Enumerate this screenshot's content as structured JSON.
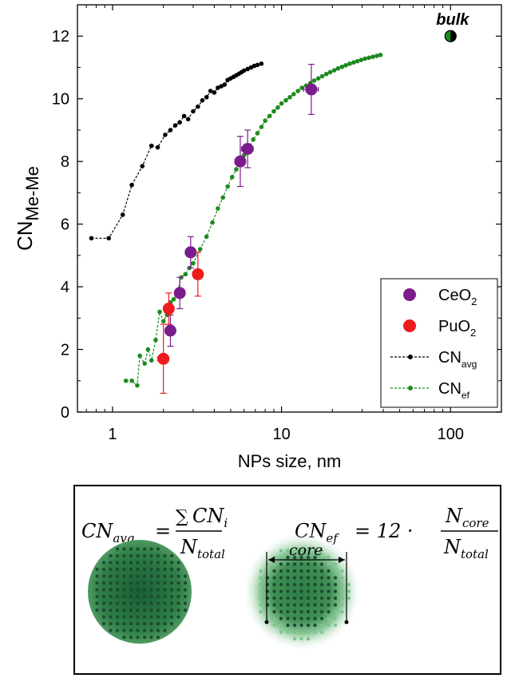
{
  "chart_data": {
    "type": "scatter",
    "xlabel": "NPs size, nm",
    "ylabel_main": "CN",
    "ylabel_sub": "Me-Me",
    "xscale": "log",
    "xlim": [
      0.62,
      200
    ],
    "ylim": [
      0,
      13
    ],
    "xticks": [
      {
        "v": 1,
        "label": "1"
      },
      {
        "v": 10,
        "label": "10"
      },
      {
        "v": 100,
        "label": "100"
      }
    ],
    "yticks": [
      0,
      2,
      4,
      6,
      8,
      10,
      12
    ],
    "bulk": {
      "label": "bulk",
      "x": 100,
      "y": 12
    },
    "series": [
      {
        "name": "CeO",
        "sub": "2",
        "type": "scatter-errorbar",
        "color": "#7b1c8c",
        "points": [
          {
            "x": 2.2,
            "y": 2.6,
            "yerr": 0.5,
            "xerr": 0.15
          },
          {
            "x": 2.5,
            "y": 3.8,
            "yerr": 0.5,
            "xerr": 0.15
          },
          {
            "x": 2.9,
            "y": 5.1,
            "yerr": 0.5,
            "xerr": 0.2
          },
          {
            "x": 5.7,
            "y": 8.0,
            "yerr": 0.8,
            "xerr": 0.4
          },
          {
            "x": 6.3,
            "y": 8.4,
            "yerr": 0.6,
            "xerr": 0.5
          },
          {
            "x": 15.0,
            "y": 10.3,
            "yerr": 0.8,
            "xerr": 1.5
          }
        ]
      },
      {
        "name": "PuO",
        "sub": "2",
        "type": "scatter-errorbar",
        "color": "#ee1c1c",
        "points": [
          {
            "x": 2.0,
            "y": 1.7,
            "yerr": 1.1,
            "xerr": 0.15
          },
          {
            "x": 2.15,
            "y": 3.3,
            "yerr": 0.5,
            "xerr": 0.12
          },
          {
            "x": 3.2,
            "y": 4.4,
            "yerr": 0.7,
            "xerr": 0.2
          }
        ]
      },
      {
        "name": "CN",
        "sub": "avg",
        "type": "line-dotted",
        "color": "#000000",
        "points": [
          {
            "x": 0.75,
            "y": 5.55
          },
          {
            "x": 0.95,
            "y": 5.55
          },
          {
            "x": 1.15,
            "y": 6.3
          },
          {
            "x": 1.3,
            "y": 7.25
          },
          {
            "x": 1.5,
            "y": 7.85
          },
          {
            "x": 1.7,
            "y": 8.5
          },
          {
            "x": 1.85,
            "y": 8.45
          },
          {
            "x": 2.05,
            "y": 8.85
          },
          {
            "x": 2.2,
            "y": 9.0
          },
          {
            "x": 2.35,
            "y": 9.15
          },
          {
            "x": 2.5,
            "y": 9.25
          },
          {
            "x": 2.65,
            "y": 9.45
          },
          {
            "x": 2.8,
            "y": 9.35
          },
          {
            "x": 3.0,
            "y": 9.6
          },
          {
            "x": 3.2,
            "y": 9.75
          },
          {
            "x": 3.4,
            "y": 9.95
          },
          {
            "x": 3.6,
            "y": 10.05
          },
          {
            "x": 3.8,
            "y": 10.25
          },
          {
            "x": 4.0,
            "y": 10.2
          },
          {
            "x": 4.2,
            "y": 10.35
          },
          {
            "x": 4.4,
            "y": 10.4
          },
          {
            "x": 4.6,
            "y": 10.45
          },
          {
            "x": 4.8,
            "y": 10.6
          },
          {
            "x": 5.0,
            "y": 10.65
          },
          {
            "x": 5.2,
            "y": 10.7
          },
          {
            "x": 5.4,
            "y": 10.75
          },
          {
            "x": 5.6,
            "y": 10.8
          },
          {
            "x": 5.8,
            "y": 10.85
          },
          {
            "x": 6.0,
            "y": 10.9
          },
          {
            "x": 6.3,
            "y": 10.95
          },
          {
            "x": 6.6,
            "y": 11.0
          },
          {
            "x": 6.9,
            "y": 11.05
          },
          {
            "x": 7.2,
            "y": 11.08
          },
          {
            "x": 7.6,
            "y": 11.12
          }
        ]
      },
      {
        "name": "CN",
        "sub": "ef",
        "type": "line-dotted",
        "color": "#1e8a1e",
        "points": [
          {
            "x": 1.2,
            "y": 1.0
          },
          {
            "x": 1.3,
            "y": 1.0
          },
          {
            "x": 1.4,
            "y": 0.85
          },
          {
            "x": 1.45,
            "y": 1.8
          },
          {
            "x": 1.55,
            "y": 1.55
          },
          {
            "x": 1.62,
            "y": 2.0
          },
          {
            "x": 1.7,
            "y": 1.65
          },
          {
            "x": 1.8,
            "y": 2.3
          },
          {
            "x": 1.9,
            "y": 3.2
          },
          {
            "x": 2.0,
            "y": 2.9
          },
          {
            "x": 2.1,
            "y": 3.1
          },
          {
            "x": 2.2,
            "y": 3.5
          },
          {
            "x": 2.3,
            "y": 3.6
          },
          {
            "x": 2.4,
            "y": 3.75
          },
          {
            "x": 2.55,
            "y": 4.3
          },
          {
            "x": 2.7,
            "y": 4.4
          },
          {
            "x": 2.85,
            "y": 4.6
          },
          {
            "x": 3.0,
            "y": 4.75
          },
          {
            "x": 3.3,
            "y": 5.2
          },
          {
            "x": 3.6,
            "y": 5.6
          },
          {
            "x": 3.9,
            "y": 6.05
          },
          {
            "x": 4.2,
            "y": 6.5
          },
          {
            "x": 4.5,
            "y": 6.85
          },
          {
            "x": 4.8,
            "y": 7.2
          },
          {
            "x": 5.1,
            "y": 7.5
          },
          {
            "x": 5.4,
            "y": 7.75
          },
          {
            "x": 5.7,
            "y": 8.0
          },
          {
            "x": 6.0,
            "y": 8.2
          },
          {
            "x": 6.4,
            "y": 8.45
          },
          {
            "x": 6.8,
            "y": 8.7
          },
          {
            "x": 7.2,
            "y": 8.9
          },
          {
            "x": 7.6,
            "y": 9.1
          },
          {
            "x": 8.0,
            "y": 9.3
          },
          {
            "x": 8.5,
            "y": 9.45
          },
          {
            "x": 9.0,
            "y": 9.6
          },
          {
            "x": 9.5,
            "y": 9.72
          },
          {
            "x": 10.0,
            "y": 9.85
          },
          {
            "x": 10.6,
            "y": 9.95
          },
          {
            "x": 11.2,
            "y": 10.05
          },
          {
            "x": 11.8,
            "y": 10.15
          },
          {
            "x": 12.5,
            "y": 10.25
          },
          {
            "x": 13.2,
            "y": 10.35
          },
          {
            "x": 14.0,
            "y": 10.42
          },
          {
            "x": 14.8,
            "y": 10.5
          },
          {
            "x": 15.6,
            "y": 10.58
          },
          {
            "x": 16.5,
            "y": 10.65
          },
          {
            "x": 17.4,
            "y": 10.72
          },
          {
            "x": 18.4,
            "y": 10.79
          },
          {
            "x": 19.4,
            "y": 10.85
          },
          {
            "x": 20.5,
            "y": 10.91
          },
          {
            "x": 21.6,
            "y": 10.97
          },
          {
            "x": 22.8,
            "y": 11.02
          },
          {
            "x": 24.0,
            "y": 11.07
          },
          {
            "x": 25.3,
            "y": 11.12
          },
          {
            "x": 26.7,
            "y": 11.16
          },
          {
            "x": 28.1,
            "y": 11.2
          },
          {
            "x": 29.6,
            "y": 11.24
          },
          {
            "x": 31.2,
            "y": 11.28
          },
          {
            "x": 32.9,
            "y": 11.31
          },
          {
            "x": 34.7,
            "y": 11.34
          },
          {
            "x": 36.6,
            "y": 11.37
          },
          {
            "x": 38.5,
            "y": 11.4
          }
        ]
      }
    ],
    "legend_position": "bottom-right"
  },
  "formulas": {
    "avg": {
      "lhs": "CN",
      "lhs_sub": "avg",
      "eq": "=",
      "sum": "∑",
      "num": "CN",
      "num_sub": "i",
      "den": "N",
      "den_sub": "total"
    },
    "ef": {
      "lhs": "CN",
      "lhs_sub": "ef",
      "eq": "= 12 ·",
      "num": "N",
      "num_sub": "core",
      "den": "N",
      "den_sub": "total"
    },
    "core_label": "core"
  },
  "colors": {
    "sphere_dark": "#1a4d2e",
    "sphere_mid": "#2e7d46",
    "sphere_light": "#7cc48a"
  }
}
